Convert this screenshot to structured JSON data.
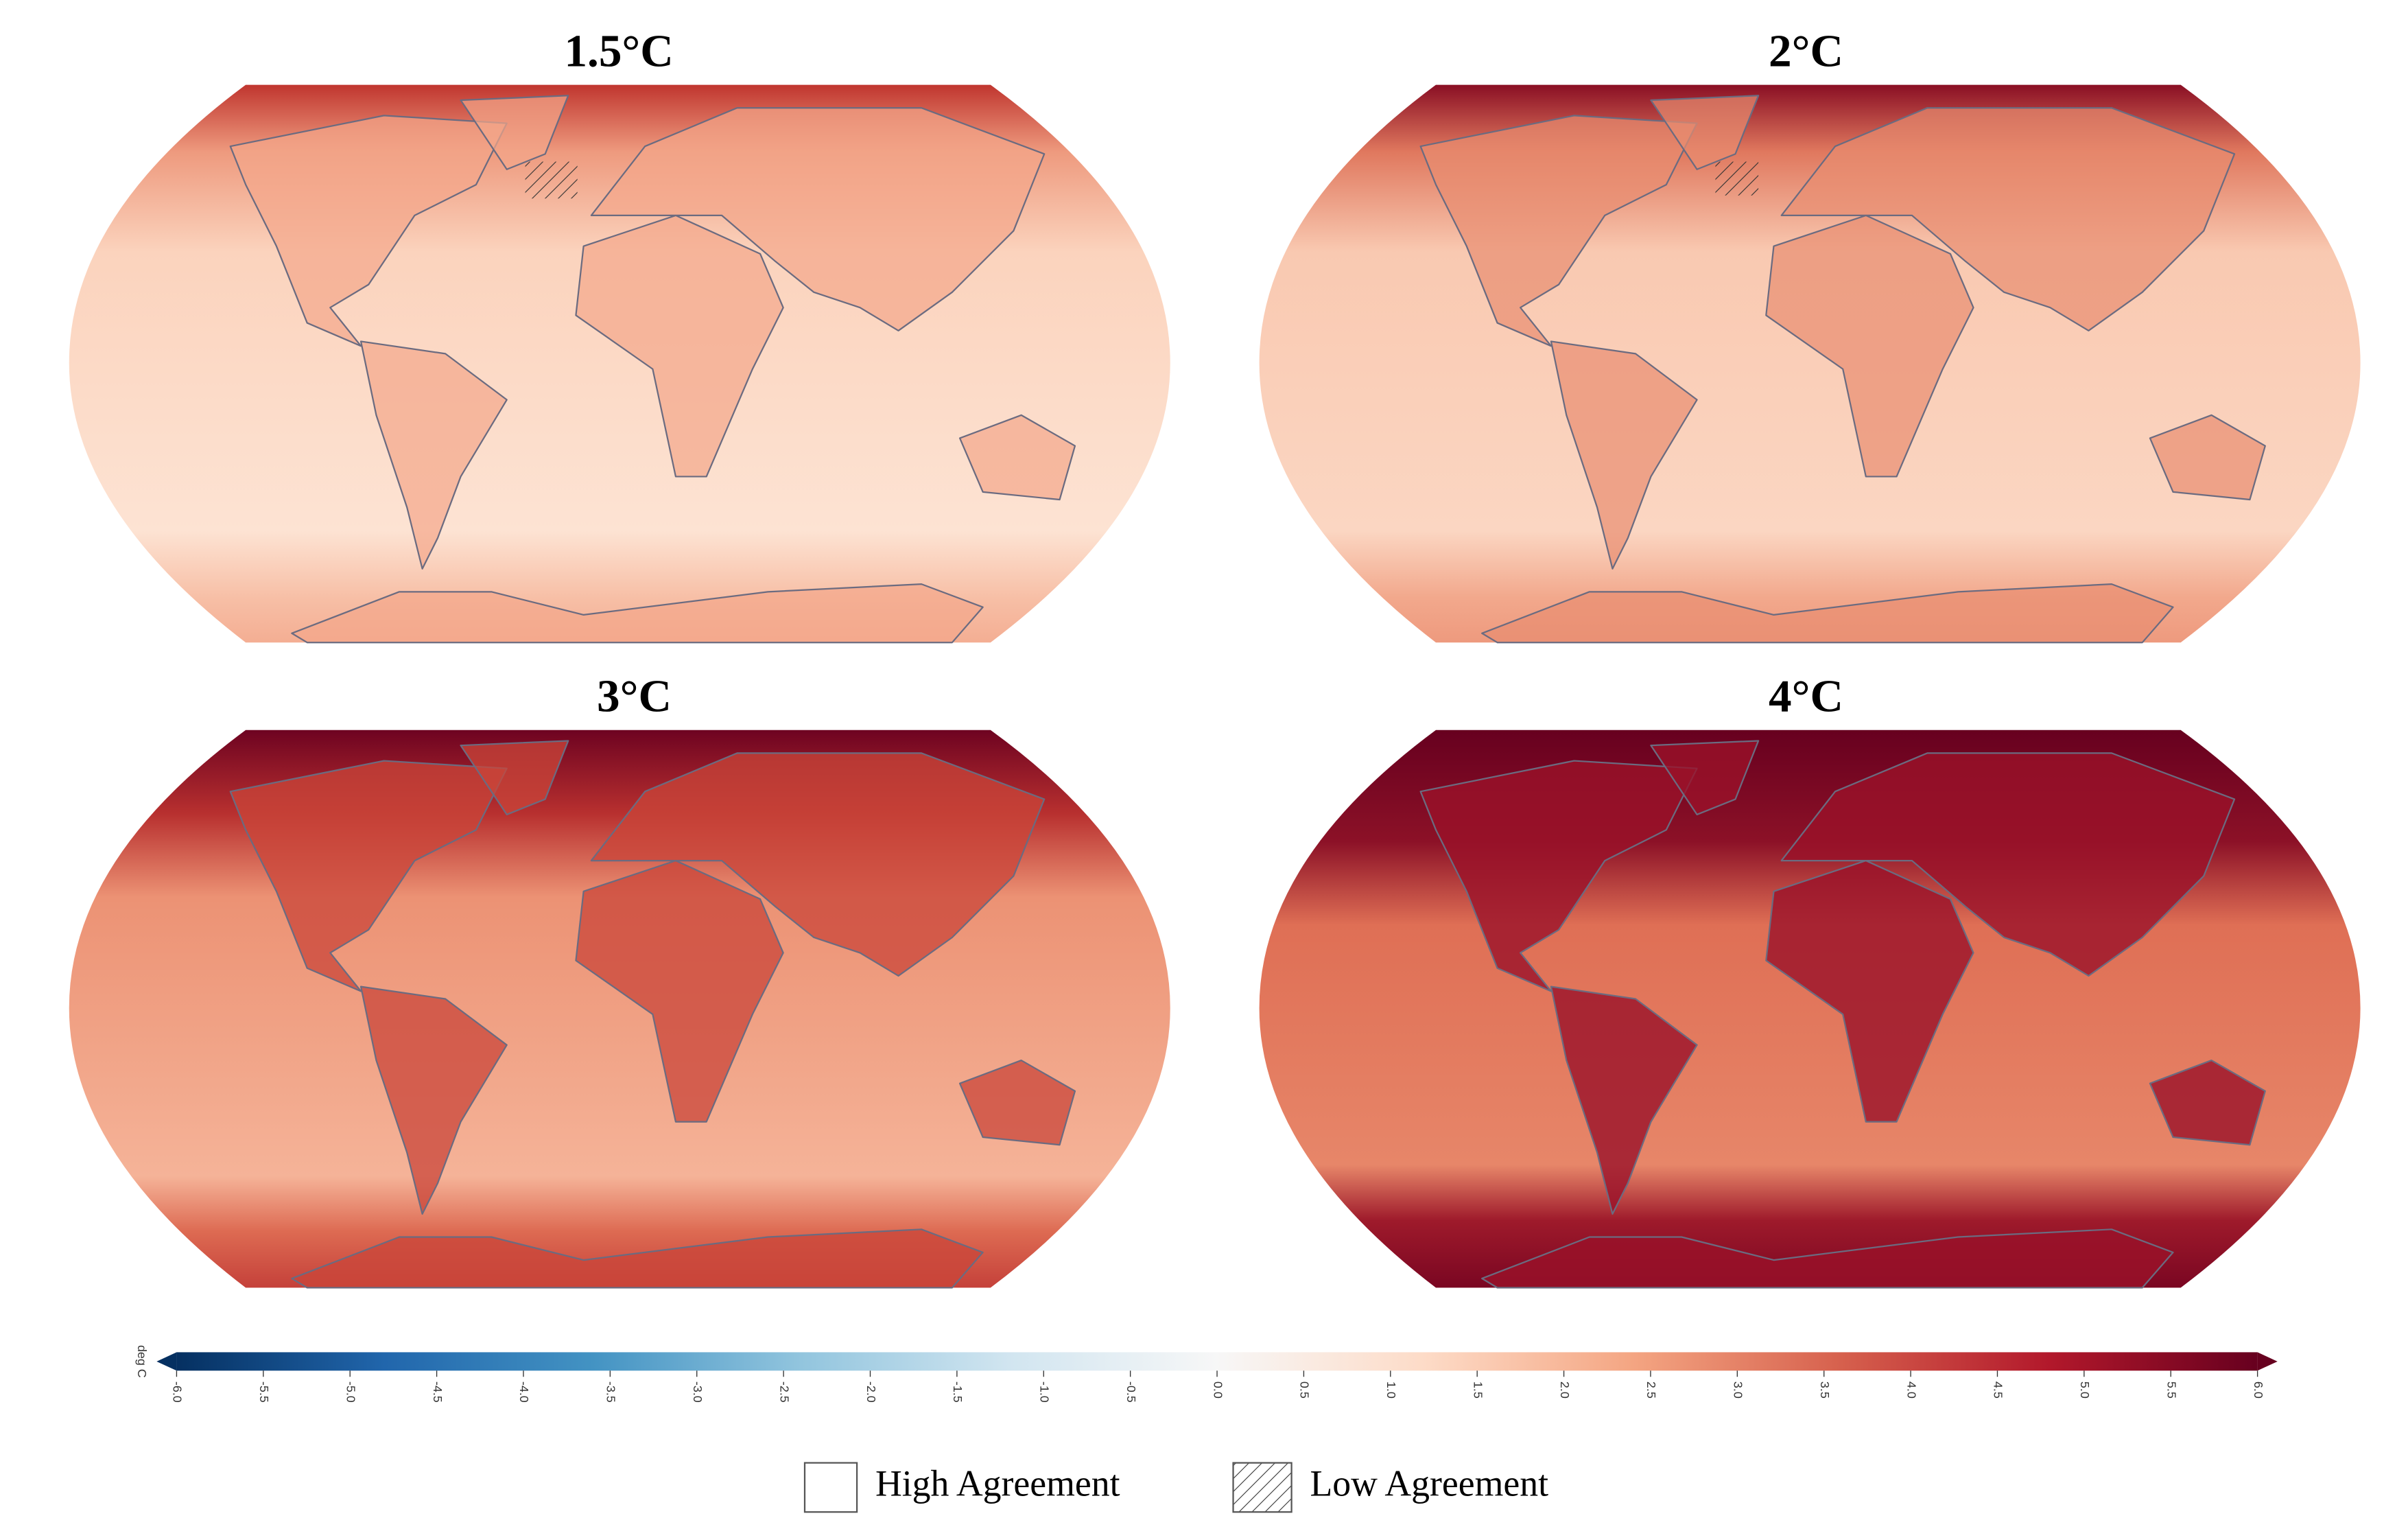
{
  "panels": [
    {
      "title": "1.5°C"
    },
    {
      "title": "2°C"
    },
    {
      "title": "3°C"
    },
    {
      "title": "4°C"
    }
  ],
  "colorbar": {
    "label": "deg C",
    "lim": [
      -6,
      6
    ],
    "colors": [
      "#053061",
      "#2166ac",
      "#4393c3",
      "#92c5de",
      "#d1e5f0",
      "#f7f7f7",
      "#fddbc7",
      "#f4a582",
      "#d6604d",
      "#b2182b",
      "#67001f"
    ],
    "ticks": [
      {
        "value": -6,
        "label": "-6.0"
      },
      {
        "value": -5.5,
        "label": "-5.5"
      },
      {
        "value": -5,
        "label": "-5.0"
      },
      {
        "value": -4.5,
        "label": "-4.5"
      },
      {
        "value": -4,
        "label": "-4.0"
      },
      {
        "value": -3.5,
        "label": "-3.5"
      },
      {
        "value": -3,
        "label": "-3.0"
      },
      {
        "value": -2.5,
        "label": "-2.5"
      },
      {
        "value": -2,
        "label": "-2.0"
      },
      {
        "value": -1.5,
        "label": "-1.5"
      },
      {
        "value": -1,
        "label": "-1.0"
      },
      {
        "value": -0.5,
        "label": "-0.5"
      },
      {
        "value": 0,
        "label": "0.0"
      },
      {
        "value": 0.5,
        "label": "0.5"
      },
      {
        "value": 1,
        "label": "1.0"
      },
      {
        "value": 1.5,
        "label": "1.5"
      },
      {
        "value": 2,
        "label": "2.0"
      },
      {
        "value": 2.5,
        "label": "2.5"
      },
      {
        "value": 3,
        "label": "3.0"
      },
      {
        "value": 3.5,
        "label": "3.5"
      },
      {
        "value": 4,
        "label": "4.0"
      },
      {
        "value": 4.5,
        "label": "4.5"
      },
      {
        "value": 5,
        "label": "5.0"
      },
      {
        "value": 5.5,
        "label": "5.5"
      },
      {
        "value": 6,
        "label": "6.0"
      }
    ]
  },
  "legend": [
    {
      "label": "High Agreement"
    },
    {
      "label": "Low Agreement"
    }
  ]
}
